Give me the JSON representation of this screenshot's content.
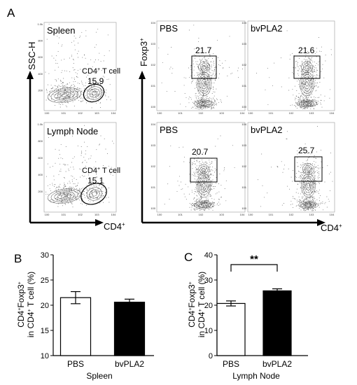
{
  "panel_letters": {
    "a": "A",
    "b": "B",
    "c": "C"
  },
  "flow": {
    "left": {
      "ylabel": "SSC-H",
      "xlabel": "CD4",
      "xlabel_sup": "+",
      "ytick_labels": [
        "1.0k",
        "800",
        "600",
        "400",
        "200"
      ],
      "plots": [
        {
          "tissue": "Spleen",
          "gate_label": "CD4",
          "gate_sup": "+",
          "gate_label_suffix": " T cell",
          "value": "15.9"
        },
        {
          "tissue": "Lymph Node",
          "gate_label": "CD4",
          "gate_sup": "+",
          "gate_label_suffix": " T cell",
          "value": "15.1"
        }
      ]
    },
    "right": {
      "ylabel": "Foxp3",
      "ylabel_sup": "+",
      "xlabel": "CD4",
      "xlabel_sup": "+",
      "plots": [
        {
          "condition": "PBS",
          "value": "21.7"
        },
        {
          "condition": "bvPLA2",
          "value": "21.6"
        },
        {
          "condition": "PBS",
          "value": "20.7"
        },
        {
          "condition": "bvPLA2",
          "value": "25.7"
        }
      ]
    },
    "decade_labels": [
      "10",
      "10",
      "10",
      "10",
      "10"
    ],
    "decade_exps": [
      "0",
      "1",
      "2",
      "3",
      "4"
    ]
  },
  "chart_data": [
    {
      "type": "bar",
      "panel": "B",
      "ylabel": "CD4⁺Foxp3⁺ in CD4⁺ T cell (%)",
      "ylabel_line1": "CD4",
      "ylabel_line1_mid": "Foxp3",
      "ylabel_sup": "+",
      "ylabel_line2": "in CD4",
      "ylabel_line2_suffix": " T cell (%)",
      "xlabel": "Spleen",
      "ylim": [
        10,
        30
      ],
      "yticks": [
        "10",
        "15",
        "20",
        "25",
        "30"
      ],
      "categories": [
        "PBS",
        "bvPLA2"
      ],
      "values": [
        21.5,
        20.6
      ],
      "errors": [
        1.2,
        0.6
      ],
      "fills": [
        "#ffffff",
        "#000000"
      ],
      "significance": ""
    },
    {
      "type": "bar",
      "panel": "C",
      "ylabel": "CD4⁺Foxp3⁺ in CD4⁺ T cell (%)",
      "ylabel_line1": "CD4",
      "ylabel_line1_mid": "Foxp3",
      "ylabel_sup": "+",
      "ylabel_line2": "in CD4",
      "ylabel_line2_suffix": " T cell (%)",
      "xlabel": "Lymph Node",
      "ylim": [
        0,
        40
      ],
      "yticks": [
        "0",
        "10",
        "20",
        "30",
        "40"
      ],
      "categories": [
        "PBS",
        "bvPLA2"
      ],
      "values": [
        20.7,
        25.7
      ],
      "errors": [
        1.0,
        0.8
      ],
      "fills": [
        "#ffffff",
        "#000000"
      ],
      "significance": "**"
    }
  ]
}
